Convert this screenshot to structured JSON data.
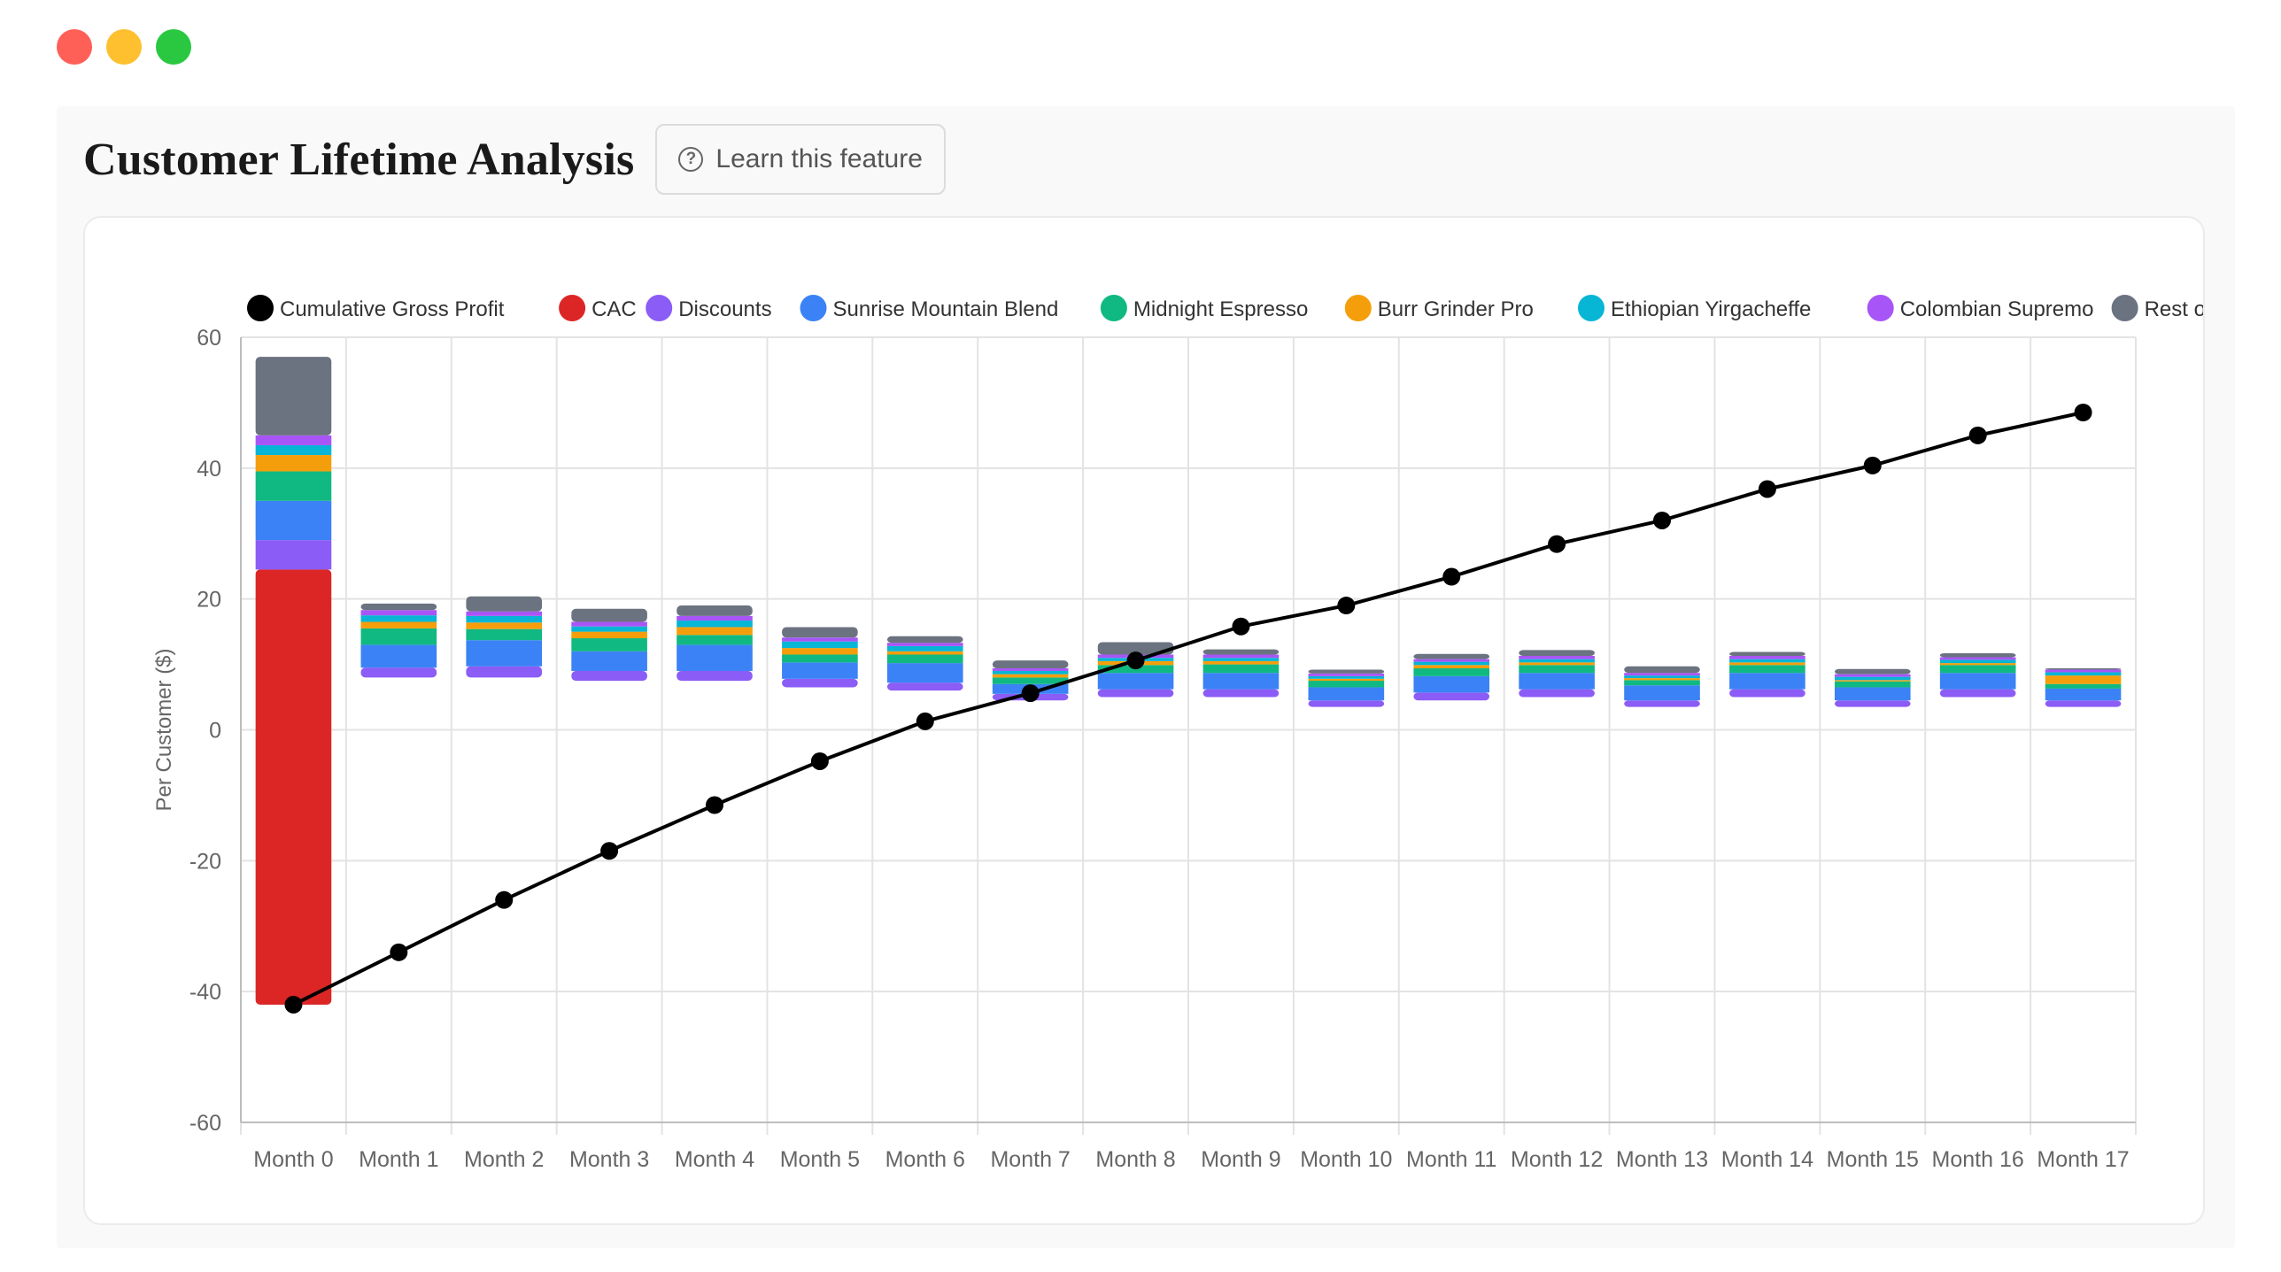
{
  "window": {
    "controls": [
      "close",
      "minimize",
      "maximize"
    ]
  },
  "header": {
    "title": "Customer Lifetime Analysis",
    "learn_button": "Learn this feature"
  },
  "chart_data": {
    "type": "bar",
    "ylabel": "Per Customer ($)",
    "xlabel": "",
    "ylim": [
      -60,
      60
    ],
    "yticks": [
      60,
      40,
      20,
      0,
      -20,
      -40,
      -60
    ],
    "legend_position": "top",
    "grid": true,
    "categories": [
      "Month 0",
      "Month 1",
      "Month 2",
      "Month 3",
      "Month 4",
      "Month 5",
      "Month 6",
      "Month 7",
      "Month 8",
      "Month 9",
      "Month 10",
      "Month 11",
      "Month 12",
      "Month 13",
      "Month 14",
      "Month 15",
      "Month 16",
      "Month 17"
    ],
    "legend": [
      {
        "name": "Cumulative Gross Profit",
        "color": "#000000"
      },
      {
        "name": "CAC",
        "color": "#dc2626"
      },
      {
        "name": "Discounts",
        "color": "#8b5cf6"
      },
      {
        "name": "Sunrise Mountain Blend",
        "color": "#3b82f6"
      },
      {
        "name": "Midnight Espresso",
        "color": "#10b981"
      },
      {
        "name": "Burr Grinder Pro",
        "color": "#f59e0b"
      },
      {
        "name": "Ethiopian Yirgacheffe",
        "color": "#06b6d4"
      },
      {
        "name": "Colombian Supremo",
        "color": "#a855f7"
      },
      {
        "name": "Rest of Products",
        "color": "#6b7280"
      }
    ],
    "stack_order": [
      "CAC",
      "Discounts",
      "Sunrise Mountain Blend",
      "Midnight Espresso",
      "Burr Grinder Pro",
      "Ethiopian Yirgacheffe",
      "Colombian Supremo",
      "Rest of Products"
    ],
    "bar_base": [
      -42,
      8,
      8,
      7.5,
      7.5,
      6.5,
      6,
      4.5,
      5,
      5,
      3.5,
      4.5,
      5,
      3.5,
      5,
      3.5,
      5,
      3.5
    ],
    "series": [
      {
        "name": "CAC",
        "values": [
          66.5,
          0,
          0,
          0,
          0,
          0,
          0,
          0,
          0,
          0,
          0,
          0,
          0,
          0,
          0,
          0,
          0,
          0
        ]
      },
      {
        "name": "Discounts",
        "values": [
          4.5,
          1.5,
          1.7,
          1.5,
          1.5,
          1.3,
          1.2,
          1,
          1.2,
          1.2,
          1,
          1.2,
          1.2,
          1,
          1.2,
          1,
          1.2,
          1
        ]
      },
      {
        "name": "Sunrise Mountain Blend",
        "values": [
          6,
          3.5,
          4,
          3,
          4,
          2.5,
          3,
          1.5,
          2.5,
          2.5,
          2,
          2.5,
          2.5,
          2.3,
          2.5,
          2,
          2.5,
          1.8
        ]
      },
      {
        "name": "Midnight Espresso",
        "values": [
          4.5,
          2.5,
          1.7,
          2,
          1.5,
          1.2,
          1.3,
          1,
          1.2,
          1.3,
          1,
          1.2,
          1.2,
          0.8,
          1.2,
          0.9,
          1.2,
          0.7
        ]
      },
      {
        "name": "Burr Grinder Pro",
        "values": [
          2.5,
          1,
          1,
          1,
          1.2,
          1,
          0.5,
          0.5,
          0.6,
          0.5,
          0.3,
          0.5,
          0.4,
          0.3,
          0.4,
          0.2,
          0.3,
          1.3
        ]
      },
      {
        "name": "Ethiopian Yirgacheffe",
        "values": [
          1.5,
          1,
          1,
          0.8,
          1,
          1,
          0.8,
          0.5,
          0.5,
          0.5,
          0.4,
          0.5,
          0.5,
          0.4,
          0.5,
          0.5,
          0.5,
          0.5
        ]
      },
      {
        "name": "Colombian Supremo",
        "values": [
          1.5,
          0.8,
          0.7,
          0.7,
          0.7,
          0.6,
          0.5,
          0.4,
          0.5,
          0.5,
          0.4,
          0.4,
          0.5,
          0.4,
          0.5,
          0.4,
          0.4,
          0.4
        ]
      },
      {
        "name": "Rest of Products",
        "values": [
          12,
          1,
          2.3,
          2,
          1.6,
          1.6,
          1,
          1.2,
          1.9,
          0.8,
          0.6,
          0.8,
          0.9,
          1,
          0.6,
          0.8,
          0.6,
          0.2
        ]
      }
    ],
    "line": {
      "name": "Cumulative Gross Profit",
      "values": [
        -42,
        -34,
        -26,
        -18.5,
        -11.5,
        -4.8,
        1.3,
        5.6,
        10.6,
        15.8,
        19,
        23.4,
        28.4,
        32,
        36.8,
        40.4,
        45,
        48.5
      ]
    }
  }
}
